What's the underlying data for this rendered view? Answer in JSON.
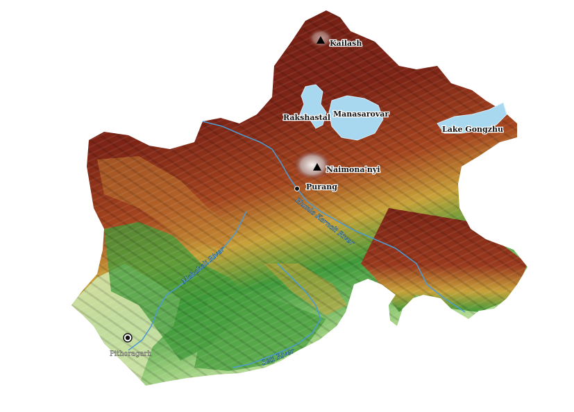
{
  "map": {
    "colors": {
      "high_elevation": "#6e1a12",
      "mid_high": "#9a3a1e",
      "mid": "#c8a23a",
      "low_mid": "#3f9a3a",
      "lowland": "#cfe3a8",
      "water": "#a8d8f0",
      "river": "#3f8fc8"
    },
    "peaks": [
      {
        "name": "Kailash",
        "icon": "triangle-peak-icon"
      },
      {
        "name": "Naimona'nyi",
        "icon": "triangle-peak-icon"
      }
    ],
    "lakes": [
      {
        "name": "Rakshastal"
      },
      {
        "name": "Manasarovar"
      },
      {
        "name": "Lake Gongzhu"
      }
    ],
    "towns": [
      {
        "name": "Purang",
        "icon": "town-dot-icon"
      },
      {
        "name": "Pithoragarh",
        "icon": "town-circle-icon"
      }
    ],
    "rivers": [
      {
        "name": "Humla Karnali River"
      },
      {
        "name": "Mahakali River"
      },
      {
        "name": "Seti River"
      }
    ]
  }
}
